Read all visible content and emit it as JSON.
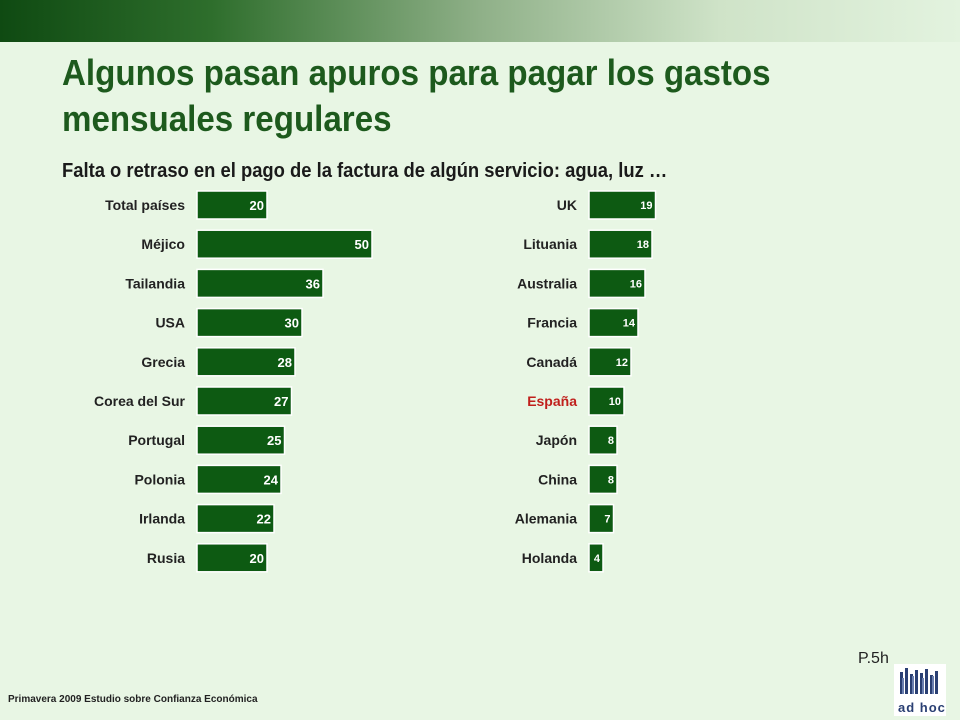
{
  "title": "Algunos pasan apuros para pagar los gastos mensuales regulares",
  "subtitle": "Falta o retraso en el pago de la factura de algún servicio: agua, luz …",
  "page_number": "P.5h",
  "footer": "Primavera 2009 Estudio sobre Confianza Económica",
  "logo_text": "ad hoc",
  "colors": {
    "bar": "#0d5a12",
    "bar_edge": "#ffffff",
    "highlight_label": "#c0201c",
    "label": "#222222"
  },
  "chart_data": [
    {
      "type": "bar",
      "orientation": "horizontal",
      "categories": [
        "Total países",
        "Méjico",
        "Tailandia",
        "USA",
        "Grecia",
        "Corea del Sur",
        "Portugal",
        "Polonia",
        "Irlanda",
        "Rusia"
      ],
      "values": [
        20,
        50,
        36,
        30,
        28,
        27,
        25,
        24,
        22,
        20
      ],
      "highlight": []
    },
    {
      "type": "bar",
      "orientation": "horizontal",
      "categories": [
        "UK",
        "Lituania",
        "Australia",
        "Francia",
        "Canadá",
        "España",
        "Japón",
        "China",
        "Alemania",
        "Holanda"
      ],
      "values": [
        19,
        18,
        16,
        14,
        12,
        10,
        8,
        8,
        7,
        4
      ],
      "highlight": [
        "España"
      ]
    }
  ]
}
